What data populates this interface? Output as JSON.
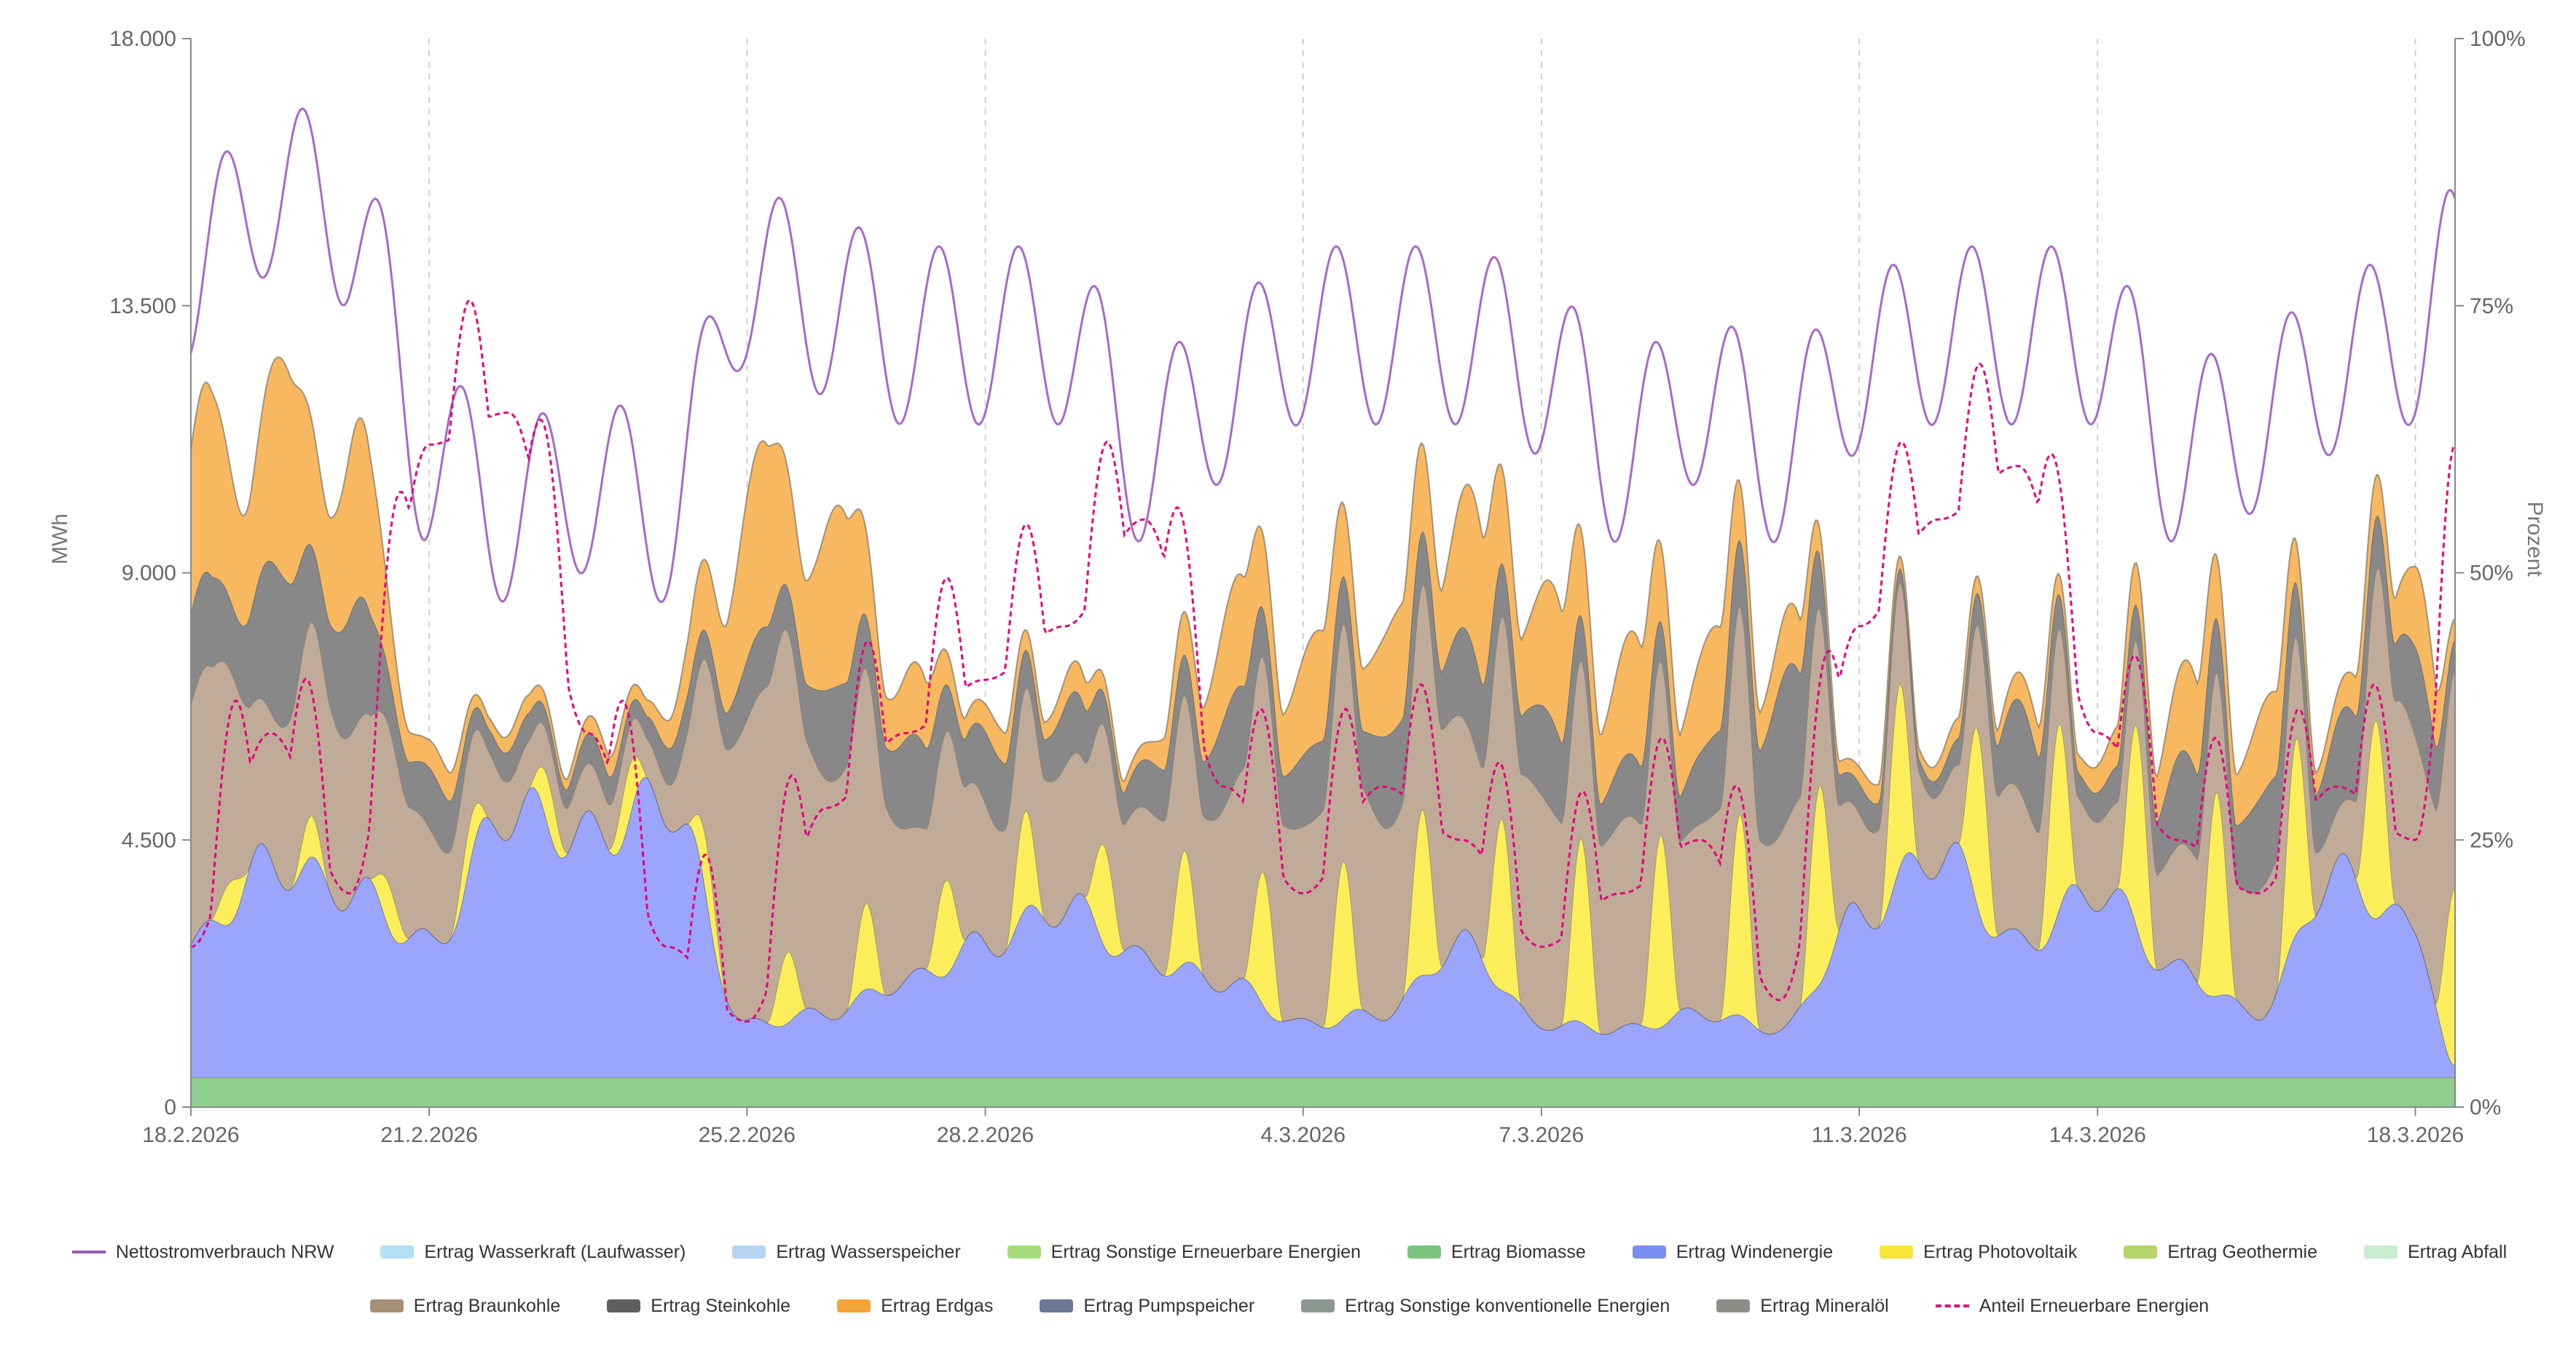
{
  "chart_data": {
    "type": "area",
    "stacked": true,
    "y_left_label": "MWh",
    "y_right_label": "Prozent",
    "y_left_range": [
      0,
      18000
    ],
    "y_right_range": [
      0,
      100
    ],
    "y_left_ticks": [
      "0",
      "4.500",
      "9.000",
      "13.500",
      "18.000"
    ],
    "y_right_ticks": [
      "0%",
      "25%",
      "50%",
      "75%",
      "100%"
    ],
    "x_tick_labels": [
      "18.2.2026",
      "21.2.2026",
      "25.2.2026",
      "28.2.2026",
      "4.3.2026",
      "7.3.2026",
      "11.3.2026",
      "14.3.2026",
      "18.3.2026"
    ],
    "x_range_days": [
      0,
      28.5
    ],
    "grid": "vertical dashed lines at date ticks",
    "legend_position": "bottom",
    "daily_samples": {
      "x_day": [
        0,
        1,
        2,
        3,
        4,
        5,
        6,
        7,
        8,
        9,
        10,
        11,
        12,
        13,
        14,
        15,
        16,
        17,
        18,
        19,
        20,
        21,
        22,
        23,
        24,
        25,
        26,
        27,
        28,
        28.5
      ],
      "wind": [
        2500,
        4000,
        3500,
        2500,
        5000,
        4500,
        5200,
        1000,
        1200,
        1800,
        2500,
        3200,
        2200,
        1800,
        1000,
        1200,
        2500,
        1000,
        900,
        1200,
        900,
        3000,
        4200,
        2500,
        3500,
        2000,
        1200,
        3800,
        2800,
        200
      ],
      "solar": [
        800,
        600,
        800,
        700,
        700,
        900,
        900,
        1000,
        1400,
        1500,
        1700,
        1600,
        1800,
        2000,
        2500,
        2800,
        2800,
        3000,
        3200,
        3300,
        3500,
        3200,
        3000,
        3000,
        3300,
        3500,
        3400,
        3200,
        3500,
        3000
      ],
      "lignite": [
        4500,
        3000,
        3500,
        2000,
        1000,
        800,
        800,
        6000,
        5000,
        3000,
        2500,
        2500,
        2500,
        3500,
        4000,
        4000,
        4000,
        4000,
        3500,
        3500,
        4000,
        2000,
        1500,
        2500,
        1500,
        2000,
        2500,
        1000,
        4000,
        4000
      ],
      "hardcoal": [
        1500,
        2500,
        2000,
        1000,
        500,
        500,
        600,
        1000,
        1500,
        1500,
        1200,
        1000,
        800,
        1500,
        1200,
        1500,
        1500,
        1500,
        1000,
        1200,
        2500,
        500,
        300,
        1500,
        500,
        1500,
        1500,
        1500,
        1500,
        800
      ],
      "gas": [
        3000,
        3500,
        3000,
        500,
        300,
        300,
        500,
        3000,
        3000,
        1200,
        500,
        500,
        300,
        1800,
        1800,
        1800,
        2500,
        2200,
        2000,
        1800,
        1000,
        300,
        300,
        500,
        500,
        1500,
        1500,
        500,
        1500,
        500
      ],
      "consumption": [
        14000,
        15500,
        15000,
        11000,
        10000,
        10500,
        10000,
        14000,
        13500,
        13000,
        13000,
        13000,
        11000,
        12000,
        13000,
        13000,
        13000,
        12500,
        11000,
        12000,
        11000,
        12500,
        13000,
        13000,
        13000,
        11000,
        11500,
        12500,
        13000,
        14000
      ],
      "renewable_share_pct": [
        15,
        35,
        20,
        62,
        65,
        35,
        15,
        8,
        28,
        35,
        40,
        45,
        55,
        30,
        20,
        30,
        25,
        15,
        20,
        25,
        10,
        45,
        55,
        60,
        35,
        25,
        20,
        30,
        25,
        50
      ]
    },
    "series": [
      {
        "name": "Nettostromverbrauch NRW",
        "kind": "line",
        "color": "#9b59b6"
      },
      {
        "name": "Ertrag Wasserkraft (Laufwasser)",
        "kind": "area",
        "color": "#b3e0f5"
      },
      {
        "name": "Ertrag Wasserspeicher",
        "kind": "area",
        "color": "#b8d4f5"
      },
      {
        "name": "Ertrag Sonstige Erneuerbare Energien",
        "kind": "area",
        "color": "#a8dc7a"
      },
      {
        "name": "Ertrag Biomasse",
        "kind": "area",
        "color": "#7bc47f"
      },
      {
        "name": "Ertrag Windenergie",
        "kind": "area",
        "color": "#7b8ef2"
      },
      {
        "name": "Ertrag Photovoltaik",
        "kind": "area",
        "color": "#f7e53b"
      },
      {
        "name": "Ertrag Geothermie",
        "kind": "area",
        "color": "#b5d56a"
      },
      {
        "name": "Ertrag Abfall",
        "kind": "area",
        "color": "#c7ecd0"
      },
      {
        "name": "Ertrag Braunkohle",
        "kind": "area",
        "color": "#a89078"
      },
      {
        "name": "Ertrag Steinkohle",
        "kind": "area",
        "color": "#5f5f5f"
      },
      {
        "name": "Ertrag Erdgas",
        "kind": "area",
        "color": "#f5a53a"
      },
      {
        "name": "Ertrag Pumpspeicher",
        "kind": "area",
        "color": "#6b7896"
      },
      {
        "name": "Ertrag Sonstige konventionelle Energien",
        "kind": "area",
        "color": "#8a9890"
      },
      {
        "name": "Ertrag Mineralöl",
        "kind": "area",
        "color": "#8c9088"
      },
      {
        "name": "Anteil Erneuerbare Energien",
        "kind": "dashed-line",
        "color": "#e6007e"
      }
    ],
    "base_biomass_mwh": 500
  },
  "legend": {
    "row1": [
      {
        "label": "Nettostromverbrauch NRW",
        "color": "#9b59b6",
        "style": "line"
      },
      {
        "label": "Ertrag Wasserkraft (Laufwasser)",
        "color": "#b3e0f5",
        "style": "box"
      },
      {
        "label": "Ertrag Wasserspeicher",
        "color": "#b8d4f5",
        "style": "box"
      },
      {
        "label": "Ertrag Sonstige Erneuerbare Energien",
        "color": "#a8dc7a",
        "style": "box"
      },
      {
        "label": "Ertrag Biomasse",
        "color": "#7bc47f",
        "style": "box"
      },
      {
        "label": "Ertrag Windenergie",
        "color": "#7b8ef2",
        "style": "box"
      },
      {
        "label": "Ertrag Photovoltaik",
        "color": "#f7e53b",
        "style": "box"
      },
      {
        "label": "Ertrag Geothermie",
        "color": "#b5d56a",
        "style": "box"
      },
      {
        "label": "Ertrag Abfall",
        "color": "#c7ecd0",
        "style": "box"
      }
    ],
    "row2": [
      {
        "label": "Ertrag Braunkohle",
        "color": "#a89078",
        "style": "box"
      },
      {
        "label": "Ertrag Steinkohle",
        "color": "#5f5f5f",
        "style": "box"
      },
      {
        "label": "Ertrag Erdgas",
        "color": "#f5a53a",
        "style": "box"
      },
      {
        "label": "Ertrag Pumpspeicher",
        "color": "#6b7896",
        "style": "box"
      },
      {
        "label": "Ertrag Sonstige konventionelle Energien",
        "color": "#8a9890",
        "style": "box"
      },
      {
        "label": "Ertrag Mineralöl",
        "color": "#8c9088",
        "style": "box"
      },
      {
        "label": "Anteil Erneuerbare Energien",
        "color": "#e6007e",
        "style": "dash"
      }
    ]
  }
}
